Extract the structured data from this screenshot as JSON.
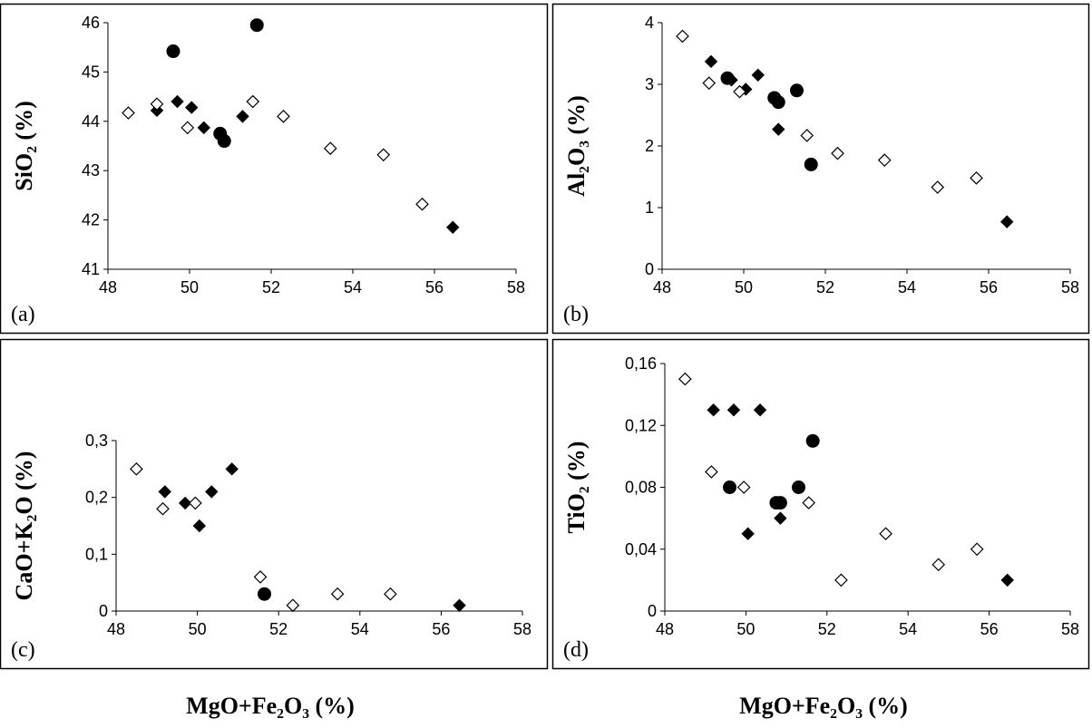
{
  "figure": {
    "x_titles": [
      "MgO+Fe₂O₃ (%)",
      "MgO+Fe₂O₃ (%)"
    ]
  },
  "chart_data": [
    {
      "type": "scatter",
      "panel_label": "(a)",
      "ylabel": "SiO₂ (%)",
      "xlabel": "",
      "xlim": [
        48,
        58
      ],
      "ylim": [
        41,
        46
      ],
      "x_ticks": [
        "48",
        "50",
        "52",
        "54",
        "56",
        "58"
      ],
      "y_ticks": [
        "41",
        "42",
        "43",
        "44",
        "45",
        "46"
      ],
      "series": [
        {
          "marker": "diamond-filled",
          "points": [
            [
              49.2,
              44.22
            ],
            [
              49.7,
              44.4
            ],
            [
              50.05,
              44.28
            ],
            [
              50.35,
              43.87
            ],
            [
              51.3,
              44.1
            ],
            [
              56.45,
              41.85
            ]
          ]
        },
        {
          "marker": "diamond-open",
          "points": [
            [
              48.5,
              44.17
            ],
            [
              49.2,
              44.35
            ],
            [
              49.95,
              43.87
            ],
            [
              51.55,
              44.4
            ],
            [
              52.3,
              44.1
            ],
            [
              53.45,
              43.45
            ],
            [
              54.75,
              43.32
            ],
            [
              55.7,
              42.32
            ]
          ]
        },
        {
          "marker": "circle-filled",
          "points": [
            [
              49.6,
              45.42
            ],
            [
              50.75,
              43.75
            ],
            [
              50.85,
              43.6
            ],
            [
              51.65,
              45.95
            ]
          ]
        }
      ]
    },
    {
      "type": "scatter",
      "panel_label": "(b)",
      "ylabel": "Al₂O₃ (%)",
      "xlabel": "",
      "xlim": [
        48,
        58
      ],
      "ylim": [
        0,
        4
      ],
      "x_ticks": [
        "48",
        "50",
        "52",
        "54",
        "56",
        "58"
      ],
      "y_ticks": [
        "0",
        "1",
        "2",
        "3",
        "4"
      ],
      "series": [
        {
          "marker": "diamond-filled",
          "points": [
            [
              49.2,
              3.37
            ],
            [
              49.7,
              3.07
            ],
            [
              50.05,
              2.92
            ],
            [
              50.35,
              3.15
            ],
            [
              50.85,
              2.27
            ],
            [
              56.45,
              0.77
            ]
          ]
        },
        {
          "marker": "diamond-open",
          "points": [
            [
              48.5,
              3.78
            ],
            [
              49.15,
              3.02
            ],
            [
              49.9,
              2.88
            ],
            [
              51.55,
              2.17
            ],
            [
              52.3,
              1.88
            ],
            [
              53.45,
              1.77
            ],
            [
              54.75,
              1.33
            ],
            [
              55.7,
              1.48
            ]
          ]
        },
        {
          "marker": "circle-filled",
          "points": [
            [
              49.6,
              3.1
            ],
            [
              50.75,
              2.78
            ],
            [
              50.85,
              2.71
            ],
            [
              51.3,
              2.9
            ],
            [
              51.65,
              1.7
            ]
          ]
        }
      ]
    },
    {
      "type": "scatter",
      "panel_label": "(c)",
      "ylabel": "CaO+K₂O (%)",
      "xlabel": "",
      "xlim": [
        48,
        58
      ],
      "ylim": [
        0,
        0.3
      ],
      "x_ticks": [
        "48",
        "50",
        "52",
        "54",
        "56",
        "58"
      ],
      "y_ticks": [
        "0",
        "0,1",
        "0,2",
        "0,3"
      ],
      "series": [
        {
          "marker": "diamond-filled",
          "points": [
            [
              49.2,
              0.21
            ],
            [
              49.7,
              0.19
            ],
            [
              50.05,
              0.15
            ],
            [
              50.35,
              0.21
            ],
            [
              50.85,
              0.25
            ],
            [
              56.45,
              0.01
            ]
          ]
        },
        {
          "marker": "diamond-open",
          "points": [
            [
              48.5,
              0.25
            ],
            [
              49.15,
              0.18
            ],
            [
              49.95,
              0.19
            ],
            [
              51.55,
              0.06
            ],
            [
              52.35,
              0.01
            ],
            [
              53.45,
              0.03
            ],
            [
              54.75,
              0.03
            ]
          ]
        },
        {
          "marker": "circle-filled",
          "points": [
            [
              51.65,
              0.03
            ]
          ]
        }
      ]
    },
    {
      "type": "scatter",
      "panel_label": "(d)",
      "ylabel": "TiO₂ (%)",
      "xlabel": "",
      "xlim": [
        48,
        58
      ],
      "ylim": [
        0,
        0.16
      ],
      "x_ticks": [
        "48",
        "50",
        "52",
        "54",
        "56",
        "58"
      ],
      "y_ticks": [
        "0",
        "0,04",
        "0,08",
        "0,12",
        "0,16"
      ],
      "series": [
        {
          "marker": "diamond-filled",
          "points": [
            [
              49.2,
              0.13
            ],
            [
              49.7,
              0.13
            ],
            [
              50.05,
              0.05
            ],
            [
              50.35,
              0.13
            ],
            [
              50.85,
              0.06
            ],
            [
              56.45,
              0.02
            ]
          ]
        },
        {
          "marker": "diamond-open",
          "points": [
            [
              48.5,
              0.15
            ],
            [
              49.15,
              0.09
            ],
            [
              49.95,
              0.08
            ],
            [
              51.55,
              0.07
            ],
            [
              52.35,
              0.02
            ],
            [
              53.45,
              0.05
            ],
            [
              54.75,
              0.03
            ],
            [
              55.7,
              0.04
            ]
          ]
        },
        {
          "marker": "circle-filled",
          "points": [
            [
              49.6,
              0.08
            ],
            [
              50.75,
              0.07
            ],
            [
              50.85,
              0.07
            ],
            [
              51.3,
              0.08
            ],
            [
              51.65,
              0.11
            ]
          ]
        }
      ]
    }
  ]
}
